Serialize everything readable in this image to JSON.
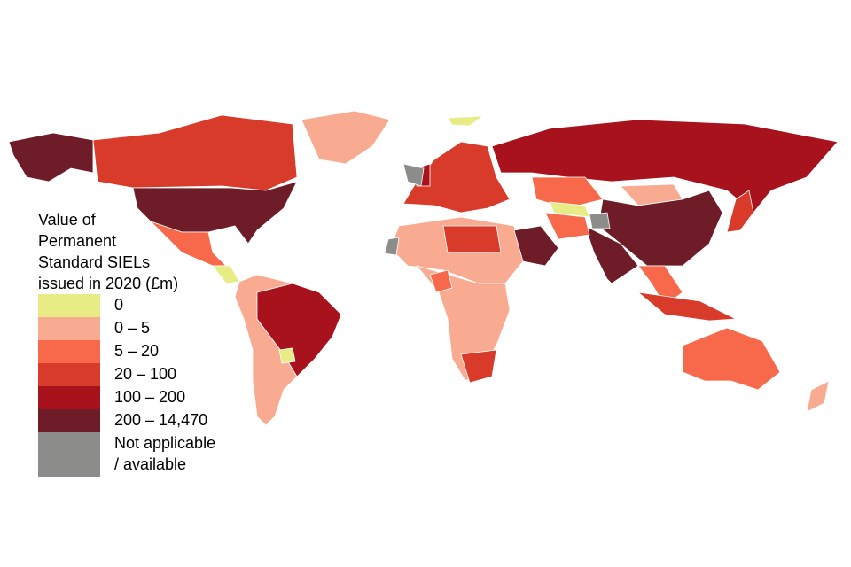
{
  "legend": {
    "title_lines": [
      "Value of",
      "Permanent",
      "Standard SIELs",
      "issued in 2020 (£m)"
    ],
    "items": [
      {
        "label": "0",
        "color": "#e8ec84"
      },
      {
        "label": "0 – 5",
        "color": "#f9ab91"
      },
      {
        "label": "5 – 20",
        "color": "#f7694a"
      },
      {
        "label": "20 – 100",
        "color": "#d93b2a"
      },
      {
        "label": "100 – 200",
        "color": "#a8121c"
      },
      {
        "label": "200 – 14,470",
        "color": "#6e1d28"
      },
      {
        "label": "Not applicable / available",
        "color": "#8c8c8a"
      }
    ]
  }
}
